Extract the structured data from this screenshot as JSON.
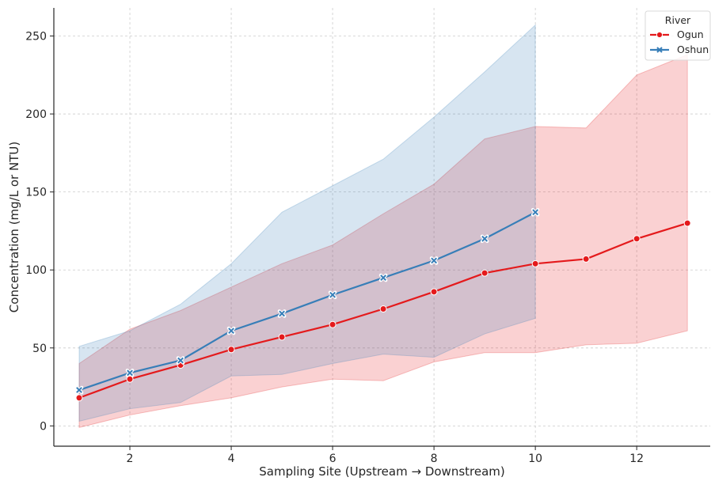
{
  "chart_data": {
    "type": "line",
    "title": "",
    "xlabel": "Sampling Site (Upstream → Downstream)",
    "ylabel": "Concentration (mg/L or NTU)",
    "xlim": [
      0.5,
      13.45
    ],
    "ylim": [
      -13,
      268
    ],
    "xticks": [
      "2",
      "4",
      "6",
      "8",
      "10",
      "12"
    ],
    "yticks": [
      "0",
      "50",
      "100",
      "150",
      "200",
      "250"
    ],
    "grid": true,
    "legend": {
      "title": "River",
      "placement": "top-right",
      "entries": [
        "Ogun",
        "Oshun"
      ]
    },
    "series": [
      {
        "name": "Ogun",
        "color": "#e41a1c",
        "marker": "circle",
        "x": [
          1,
          2,
          3,
          4,
          5,
          6,
          7,
          8,
          9,
          10,
          11,
          12,
          13
        ],
        "y": [
          18,
          30,
          39,
          49,
          57,
          65,
          75,
          86,
          98,
          104,
          107,
          120,
          130
        ],
        "ci_low": [
          -1,
          7,
          13,
          18,
          25,
          30,
          29,
          41,
          47,
          47,
          52,
          53,
          61
        ],
        "ci_high": [
          40,
          62,
          74,
          89,
          104,
          116,
          136,
          155,
          184,
          192,
          191,
          225,
          238
        ]
      },
      {
        "name": "Oshun",
        "color": "#377eb8",
        "marker": "x",
        "x": [
          1,
          2,
          3,
          4,
          5,
          6,
          7,
          8,
          9,
          10
        ],
        "y": [
          23,
          34,
          42,
          61,
          72,
          84,
          95,
          106,
          120,
          137
        ],
        "ci_low": [
          3,
          11,
          15,
          32,
          33,
          40,
          46,
          44,
          59,
          69
        ],
        "ci_high": [
          51,
          61,
          78,
          104,
          137,
          154,
          171,
          198,
          227,
          257
        ]
      }
    ]
  }
}
